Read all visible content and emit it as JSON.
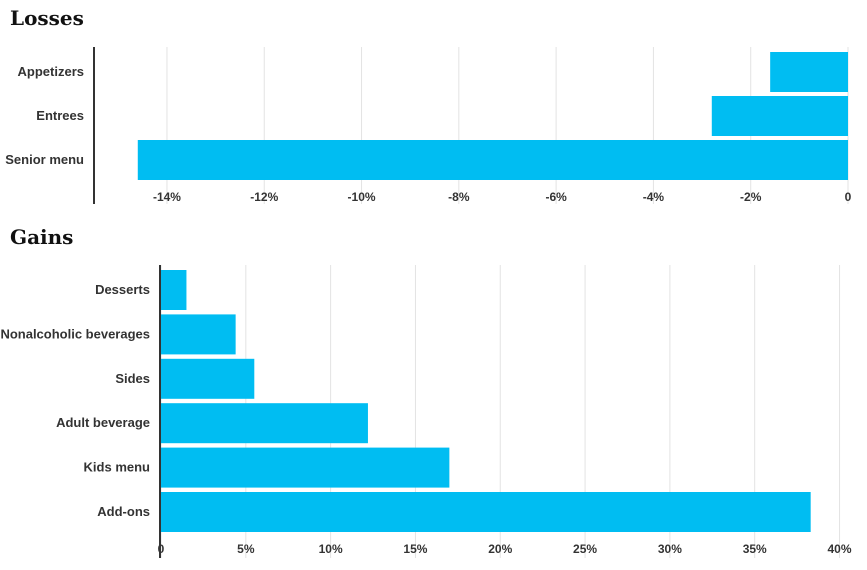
{
  "colors": {
    "bar": "#00bdf2",
    "grid": "#e3e3e3",
    "axis": "#333333",
    "text": "#333333"
  },
  "chart_data": [
    {
      "type": "bar",
      "orientation": "horizontal",
      "title": "Losses",
      "categories": [
        "Appetizers",
        "Entrees",
        "Senior menu"
      ],
      "values": [
        -1.6,
        -2.8,
        -14.6
      ],
      "xlim": [
        -15.5,
        0
      ],
      "xticks": [
        -14,
        -12,
        -10,
        -8,
        -6,
        -4,
        -2,
        0
      ],
      "xtick_labels": [
        "-14%",
        "-12%",
        "-10%",
        "-8%",
        "-6%",
        "-4%",
        "-2%",
        "0"
      ],
      "xlabel": "",
      "ylabel": "",
      "grid": true
    },
    {
      "type": "bar",
      "orientation": "horizontal",
      "title": "Gains",
      "categories": [
        "Desserts",
        "Nonalcoholic beverages",
        "Sides",
        "Adult beverage",
        "Kids menu",
        "Add-ons"
      ],
      "values": [
        1.5,
        4.4,
        5.5,
        12.2,
        17.0,
        38.3
      ],
      "xlim": [
        0,
        40.5
      ],
      "xticks": [
        0,
        5,
        10,
        15,
        20,
        25,
        30,
        35,
        40
      ],
      "xtick_labels": [
        "0",
        "5%",
        "10%",
        "15%",
        "20%",
        "25%",
        "30%",
        "35%",
        "40%"
      ],
      "xlabel": "",
      "ylabel": "",
      "grid": true
    }
  ]
}
